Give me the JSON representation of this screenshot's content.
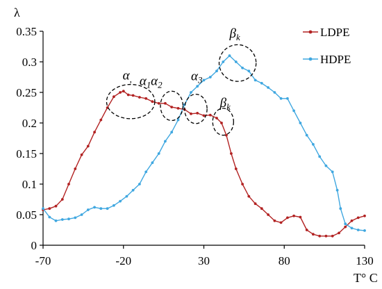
{
  "chart_data": {
    "type": "line",
    "xlabel": "T° C",
    "ylabel": "λ",
    "xlim": [
      -70,
      130
    ],
    "ylim": [
      0,
      0.35
    ],
    "xticks": [
      "-70",
      "-20",
      "30",
      "80",
      "130"
    ],
    "yticks": [
      "0",
      "0.05",
      "0.1",
      "0.15",
      "0.2",
      "0.25",
      "0.3",
      "0.35"
    ],
    "legend_position": "top-right",
    "series": [
      {
        "name": "LDPE",
        "color": "#b22222",
        "x": [
          -70,
          -66,
          -62,
          -58,
          -54,
          -50,
          -46,
          -42,
          -38,
          -34,
          -30,
          -26,
          -22,
          -20,
          -17,
          -14,
          -10,
          -6,
          -2,
          2,
          6,
          10,
          14,
          18,
          22,
          26,
          30,
          34,
          38,
          41,
          44,
          47,
          50,
          54,
          58,
          62,
          66,
          70,
          74,
          78,
          82,
          86,
          90,
          94,
          98,
          102,
          106,
          110,
          114,
          118,
          122,
          126,
          130
        ],
        "y": [
          0.058,
          0.06,
          0.064,
          0.075,
          0.1,
          0.125,
          0.148,
          0.162,
          0.185,
          0.205,
          0.225,
          0.243,
          0.25,
          0.252,
          0.246,
          0.245,
          0.242,
          0.24,
          0.235,
          0.232,
          0.232,
          0.226,
          0.224,
          0.222,
          0.215,
          0.216,
          0.212,
          0.213,
          0.208,
          0.2,
          0.18,
          0.15,
          0.125,
          0.1,
          0.08,
          0.068,
          0.06,
          0.05,
          0.04,
          0.037,
          0.045,
          0.048,
          0.046,
          0.025,
          0.018,
          0.015,
          0.015,
          0.015,
          0.02,
          0.03,
          0.04,
          0.045,
          0.048
        ]
      },
      {
        "name": "HDPE",
        "color": "#3fa7e0",
        "x": [
          -70,
          -66,
          -62,
          -58,
          -54,
          -50,
          -46,
          -42,
          -38,
          -34,
          -30,
          -26,
          -22,
          -18,
          -14,
          -10,
          -6,
          -2,
          2,
          6,
          10,
          14,
          18,
          22,
          26,
          30,
          34,
          38,
          42,
          46,
          50,
          54,
          58,
          62,
          66,
          70,
          74,
          78,
          82,
          86,
          90,
          94,
          98,
          102,
          106,
          110,
          113,
          115,
          118,
          122,
          126,
          130
        ],
        "y": [
          0.06,
          0.046,
          0.04,
          0.042,
          0.043,
          0.045,
          0.05,
          0.058,
          0.062,
          0.06,
          0.06,
          0.065,
          0.072,
          0.08,
          0.09,
          0.1,
          0.12,
          0.135,
          0.15,
          0.17,
          0.185,
          0.205,
          0.23,
          0.25,
          0.26,
          0.27,
          0.275,
          0.285,
          0.3,
          0.31,
          0.3,
          0.29,
          0.285,
          0.27,
          0.265,
          0.258,
          0.25,
          0.24,
          0.24,
          0.22,
          0.2,
          0.18,
          0.165,
          0.145,
          0.13,
          0.12,
          0.09,
          0.06,
          0.035,
          0.028,
          0.025,
          0.024
        ]
      }
    ],
    "annotations": [
      {
        "base": "α",
        "sub": ",",
        "x": -20.5,
        "y": 0.271
      },
      {
        "base": "α",
        "sub": "1",
        "x": -10,
        "y": 0.262
      },
      {
        "base": "α",
        "sub": "2",
        "x": -3,
        "y": 0.262
      },
      {
        "base": "α",
        "sub": "3",
        "x": 22,
        "y": 0.27
      },
      {
        "base": "β",
        "sub": "k",
        "x": 40,
        "y": 0.226
      },
      {
        "base": "β",
        "sub": "k",
        "x": 46,
        "y": 0.34
      }
    ],
    "circles": [
      {
        "cx": -15.5,
        "cy": 0.235,
        "rx": 15,
        "ry": 0.028
      },
      {
        "cx": 10,
        "cy": 0.228,
        "rx": 7,
        "ry": 0.024
      },
      {
        "cx": 25,
        "cy": 0.223,
        "rx": 7,
        "ry": 0.024
      },
      {
        "cx": 42,
        "cy": 0.202,
        "rx": 6.5,
        "ry": 0.022
      },
      {
        "cx": 51,
        "cy": 0.298,
        "rx": 11.5,
        "ry": 0.03
      }
    ]
  }
}
